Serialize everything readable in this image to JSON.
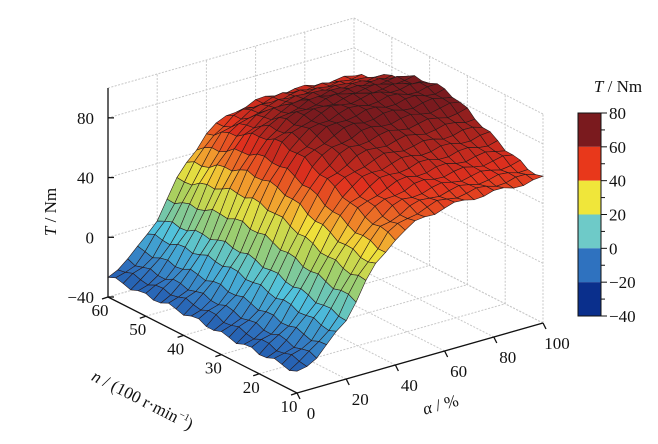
{
  "chart_data": {
    "type": "surface3d",
    "title": "",
    "xlabel": "α / %",
    "ylabel": "n / (100 r·min⁻¹)",
    "zlabel": "T / Nm",
    "xlim": [
      0,
      100
    ],
    "ylim": [
      10,
      60
    ],
    "zlim": [
      -40,
      100
    ],
    "xticks": [
      "0",
      "20",
      "40",
      "60",
      "80",
      "100"
    ],
    "yticks": [
      "10",
      "20",
      "30",
      "40",
      "50",
      "60"
    ],
    "zticks": [
      "-40",
      "0",
      "40",
      "80"
    ],
    "grid": true,
    "x": [
      0,
      10,
      20,
      30,
      40,
      50,
      60,
      70,
      80,
      90,
      100
    ],
    "y": [
      10,
      15,
      20,
      25,
      30,
      35,
      40,
      45,
      50,
      55,
      60
    ],
    "z": [
      [
        -26,
        -18,
        0,
        27,
        45,
        53,
        56,
        57,
        57,
        57,
        57
      ],
      [
        -26,
        -18,
        1,
        28,
        47,
        55,
        58,
        59,
        59,
        59,
        59
      ],
      [
        -26,
        -17,
        3,
        31,
        51,
        60,
        63,
        64,
        64,
        64,
        64
      ],
      [
        -26,
        -17,
        5,
        35,
        57,
        66,
        69,
        70,
        70,
        70,
        70
      ],
      [
        -26,
        -16,
        7,
        40,
        63,
        73,
        76,
        77,
        77,
        77,
        77
      ],
      [
        -25,
        -15,
        9,
        44,
        68,
        78,
        82,
        83,
        83,
        83,
        83
      ],
      [
        -25,
        -15,
        10,
        45,
        70,
        80,
        84,
        85,
        85,
        84,
        83
      ],
      [
        -25,
        -15,
        9,
        44,
        68,
        78,
        82,
        83,
        82,
        81,
        80
      ],
      [
        -26,
        -16,
        7,
        40,
        63,
        73,
        76,
        77,
        76,
        75,
        74
      ],
      [
        -26,
        -17,
        5,
        35,
        57,
        66,
        69,
        70,
        69,
        68,
        67
      ],
      [
        -26,
        -17,
        3,
        31,
        51,
        60,
        63,
        64,
        63,
        62,
        61
      ]
    ],
    "colorbar": {
      "title": "T / Nm",
      "ticks": [
        "80",
        "60",
        "40",
        "20",
        "0",
        "-20",
        "-40"
      ],
      "bins": [
        {
          "from": 60,
          "to": 80,
          "color": "#7a1a1e"
        },
        {
          "from": 40,
          "to": 60,
          "color": "#e8381b"
        },
        {
          "from": 20,
          "to": 40,
          "color": "#f0e63a"
        },
        {
          "from": 0,
          "to": 20,
          "color": "#6ecac8"
        },
        {
          "from": -20,
          "to": 0,
          "color": "#2f72bf"
        },
        {
          "from": -40,
          "to": -20,
          "color": "#0a2f8c"
        }
      ]
    }
  },
  "labels": {
    "zlabel_var": "T",
    "zlabel_unit": " / Nm",
    "ylabel_var": "n",
    "ylabel_unit": " / (100 r·min",
    "ylabel_sup": "−1",
    "ylabel_close": ")",
    "xlabel_var": "α",
    "xlabel_unit": " / %",
    "cb_var": "T",
    "cb_unit": " / Nm"
  }
}
